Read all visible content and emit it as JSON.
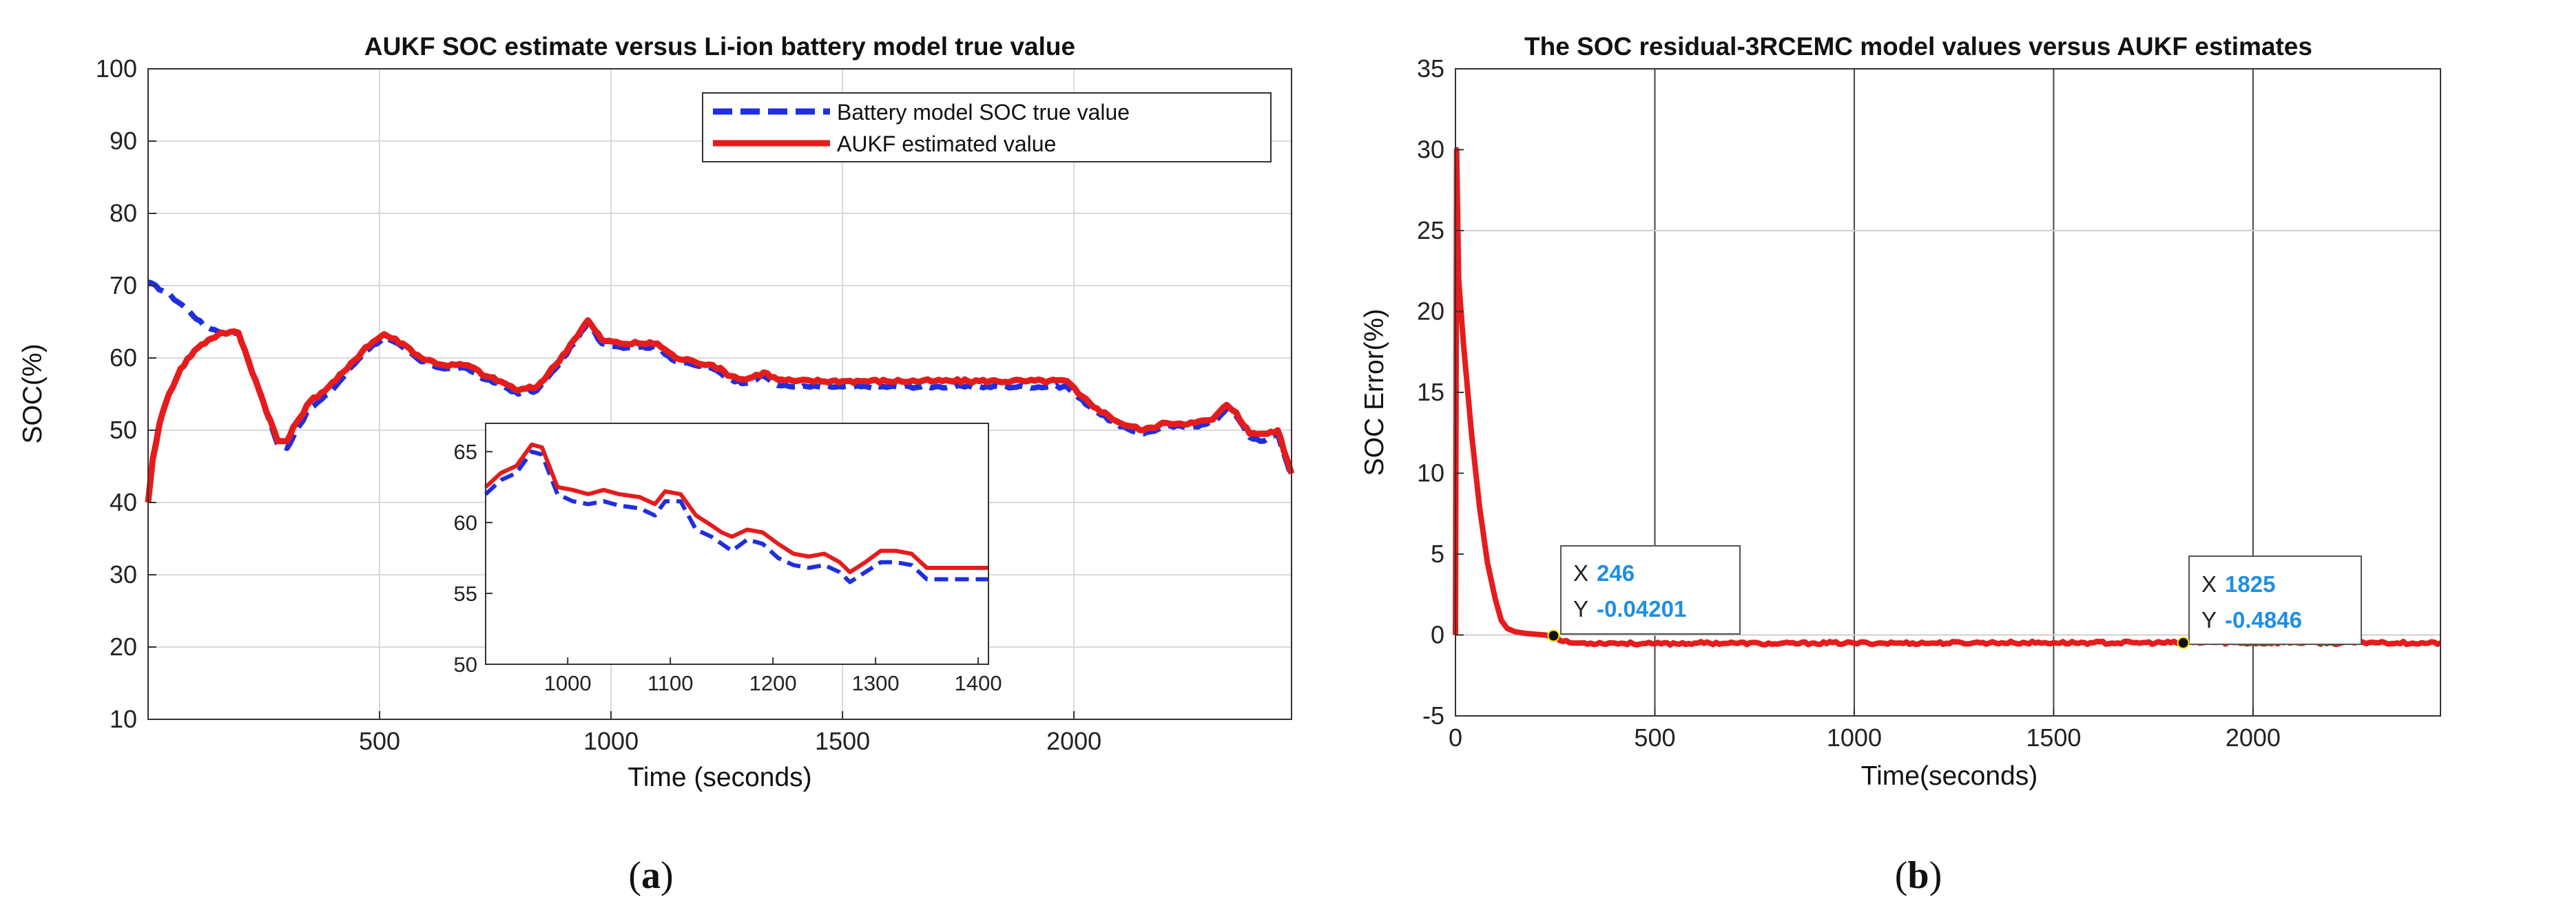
{
  "chart_data": [
    {
      "type": "line",
      "panel": "a",
      "title": "AUKF SOC estimate versus Li-ion battery model true value",
      "xlabel": "Time (seconds)",
      "ylabel": "SOC(%)",
      "xlim": [
        0,
        2470
      ],
      "ylim": [
        10,
        100
      ],
      "xticks": [
        500,
        1000,
        1500,
        2000
      ],
      "yticks": [
        10,
        20,
        30,
        40,
        50,
        60,
        70,
        80,
        90,
        100
      ],
      "grid": true,
      "legend_position": "top-right",
      "series": [
        {
          "name": "Battery model SOC true value",
          "color": "#1f2ee0",
          "style": "dashed",
          "points": [
            [
              0,
              70.5
            ],
            [
              40,
              69
            ],
            [
              80,
              67
            ],
            [
              120,
              64.5
            ],
            [
              160,
              63.5
            ],
            [
              195,
              63.5
            ],
            [
              240,
              55.5
            ],
            [
              280,
              48
            ],
            [
              300,
              47.5
            ],
            [
              320,
              50
            ],
            [
              350,
              53
            ],
            [
              390,
              55
            ],
            [
              430,
              58
            ],
            [
              470,
              61
            ],
            [
              510,
              62.8
            ],
            [
              550,
              61.5
            ],
            [
              590,
              59.5
            ],
            [
              640,
              58.5
            ],
            [
              690,
              58.5
            ],
            [
              730,
              57
            ],
            [
              770,
              56
            ],
            [
              800,
              55
            ],
            [
              840,
              55.5
            ],
            [
              880,
              58.5
            ],
            [
              920,
              62
            ],
            [
              950,
              64.8
            ],
            [
              980,
              62
            ],
            [
              1020,
              61.5
            ],
            [
              1060,
              61.5
            ],
            [
              1100,
              61.5
            ],
            [
              1140,
              59.5
            ],
            [
              1180,
              59
            ],
            [
              1220,
              58.5
            ],
            [
              1260,
              57
            ],
            [
              1290,
              56.5
            ],
            [
              1330,
              57.5
            ],
            [
              1360,
              56.2
            ],
            [
              1400,
              56
            ],
            [
              1500,
              56
            ],
            [
              1700,
              56
            ],
            [
              1900,
              56
            ],
            [
              1985,
              56
            ],
            [
              2010,
              54.5
            ],
            [
              2050,
              52.5
            ],
            [
              2100,
              50.5
            ],
            [
              2150,
              49.5
            ],
            [
              2200,
              50.5
            ],
            [
              2260,
              50.5
            ],
            [
              2300,
              51
            ],
            [
              2330,
              53
            ],
            [
              2350,
              52
            ],
            [
              2380,
              49
            ],
            [
              2410,
              48.5
            ],
            [
              2440,
              49.5
            ],
            [
              2460,
              45.5
            ],
            [
              2470,
              43.5
            ]
          ]
        },
        {
          "name": "AUKF estimated value",
          "color": "#e51c1c",
          "style": "solid",
          "points": [
            [
              0,
              40
            ],
            [
              10,
              46
            ],
            [
              25,
              51
            ],
            [
              45,
              55
            ],
            [
              70,
              58.5
            ],
            [
              100,
              61
            ],
            [
              130,
              62.5
            ],
            [
              160,
              63.5
            ],
            [
              195,
              63.5
            ],
            [
              240,
              55.5
            ],
            [
              280,
              48.5
            ],
            [
              300,
              48.5
            ],
            [
              320,
              51
            ],
            [
              350,
              54
            ],
            [
              390,
              56
            ],
            [
              430,
              58.5
            ],
            [
              470,
              61.5
            ],
            [
              510,
              63.3
            ],
            [
              550,
              62
            ],
            [
              590,
              60
            ],
            [
              640,
              59
            ],
            [
              690,
              59
            ],
            [
              730,
              57.5
            ],
            [
              770,
              56.5
            ],
            [
              800,
              55.5
            ],
            [
              840,
              56
            ],
            [
              880,
              59
            ],
            [
              920,
              62.5
            ],
            [
              950,
              65.2
            ],
            [
              980,
              62.5
            ],
            [
              1020,
              62
            ],
            [
              1060,
              62
            ],
            [
              1100,
              62
            ],
            [
              1140,
              60
            ],
            [
              1180,
              59.5
            ],
            [
              1220,
              59
            ],
            [
              1260,
              57.5
            ],
            [
              1290,
              57
            ],
            [
              1330,
              58
            ],
            [
              1360,
              57
            ],
            [
              1400,
              56.8
            ],
            [
              1500,
              56.8
            ],
            [
              1700,
              56.8
            ],
            [
              1900,
              56.8
            ],
            [
              1985,
              56.8
            ],
            [
              2010,
              55
            ],
            [
              2050,
              53
            ],
            [
              2100,
              51
            ],
            [
              2150,
              50
            ],
            [
              2200,
              51
            ],
            [
              2260,
              51
            ],
            [
              2300,
              51.5
            ],
            [
              2330,
              53.5
            ],
            [
              2350,
              52.5
            ],
            [
              2380,
              49.5
            ],
            [
              2410,
              49.5
            ],
            [
              2440,
              50
            ],
            [
              2460,
              46
            ],
            [
              2470,
              44
            ]
          ]
        }
      ],
      "inset": {
        "xlim": [
          920,
          1410
        ],
        "ylim": [
          50,
          67
        ],
        "xticks": [
          1000,
          1100,
          1200,
          1300,
          1400
        ],
        "yticks": [
          50,
          55,
          60,
          65
        ],
        "series": [
          {
            "name": "Battery model SOC true value",
            "color": "#1f2ee0",
            "style": "dashed",
            "points": [
              [
                920,
                62
              ],
              [
                935,
                63
              ],
              [
                950,
                63.5
              ],
              [
                965,
                65
              ],
              [
                975,
                64.8
              ],
              [
                990,
                62
              ],
              [
                1005,
                61.5
              ],
              [
                1020,
                61.3
              ],
              [
                1035,
                61.5
              ],
              [
                1050,
                61.2
              ],
              [
                1070,
                61
              ],
              [
                1085,
                60.5
              ],
              [
                1095,
                61.5
              ],
              [
                1110,
                61.5
              ],
              [
                1125,
                59.5
              ],
              [
                1140,
                59
              ],
              [
                1150,
                58.5
              ],
              [
                1160,
                58
              ],
              [
                1175,
                58.8
              ],
              [
                1190,
                58.5
              ],
              [
                1205,
                57.5
              ],
              [
                1220,
                57
              ],
              [
                1235,
                56.8
              ],
              [
                1250,
                57
              ],
              [
                1265,
                56.5
              ],
              [
                1275,
                55.8
              ],
              [
                1290,
                56.5
              ],
              [
                1305,
                57.2
              ],
              [
                1320,
                57.2
              ],
              [
                1335,
                57
              ],
              [
                1350,
                56
              ],
              [
                1370,
                56
              ],
              [
                1410,
                56
              ]
            ]
          },
          {
            "name": "AUKF estimated value",
            "color": "#e51c1c",
            "style": "solid",
            "points": [
              [
                920,
                62.5
              ],
              [
                935,
                63.5
              ],
              [
                950,
                64
              ],
              [
                965,
                65.5
              ],
              [
                975,
                65.3
              ],
              [
                990,
                62.5
              ],
              [
                1005,
                62.3
              ],
              [
                1020,
                62
              ],
              [
                1035,
                62.3
              ],
              [
                1050,
                62
              ],
              [
                1070,
                61.8
              ],
              [
                1085,
                61.3
              ],
              [
                1095,
                62.2
              ],
              [
                1110,
                62
              ],
              [
                1125,
                60.5
              ],
              [
                1140,
                59.8
              ],
              [
                1150,
                59.3
              ],
              [
                1160,
                59
              ],
              [
                1175,
                59.5
              ],
              [
                1190,
                59.3
              ],
              [
                1205,
                58.5
              ],
              [
                1220,
                57.8
              ],
              [
                1235,
                57.6
              ],
              [
                1250,
                57.8
              ],
              [
                1265,
                57.2
              ],
              [
                1275,
                56.5
              ],
              [
                1290,
                57.2
              ],
              [
                1305,
                58
              ],
              [
                1320,
                58
              ],
              [
                1335,
                57.8
              ],
              [
                1350,
                56.8
              ],
              [
                1370,
                56.8
              ],
              [
                1410,
                56.8
              ]
            ]
          }
        ]
      }
    },
    {
      "type": "line",
      "panel": "b",
      "title": "The SOC residual-3RCEMC model values versus AUKF estimates",
      "xlabel": "Time(seconds)",
      "ylabel": "SOC Error(%)",
      "xlim": [
        0,
        2470
      ],
      "ylim": [
        -5,
        35
      ],
      "xticks": [
        0,
        500,
        1000,
        1500,
        2000
      ],
      "yticks": [
        -5,
        0,
        5,
        10,
        15,
        20,
        25,
        30,
        35
      ],
      "grid": true,
      "series": [
        {
          "name": "SOC residual",
          "color": "#e51c1c",
          "style": "solid",
          "points": [
            [
              0,
              0
            ],
            [
              3,
              30
            ],
            [
              8,
              22
            ],
            [
              20,
              18
            ],
            [
              40,
              12.5
            ],
            [
              60,
              8
            ],
            [
              80,
              4.5
            ],
            [
              100,
              2.2
            ],
            [
              115,
              0.9
            ],
            [
              130,
              0.4
            ],
            [
              150,
              0.2
            ],
            [
              175,
              0.1
            ],
            [
              200,
              0.05
            ],
            [
              225,
              0
            ],
            [
              246,
              -0.042
            ],
            [
              270,
              -0.4
            ],
            [
              300,
              -0.5
            ],
            [
              400,
              -0.5
            ],
            [
              500,
              -0.55
            ],
            [
              600,
              -0.5
            ],
            [
              700,
              -0.5
            ],
            [
              800,
              -0.55
            ],
            [
              900,
              -0.5
            ],
            [
              1000,
              -0.5
            ],
            [
              1100,
              -0.5
            ],
            [
              1200,
              -0.5
            ],
            [
              1300,
              -0.48
            ],
            [
              1400,
              -0.48
            ],
            [
              1500,
              -0.48
            ],
            [
              1600,
              -0.48
            ],
            [
              1700,
              -0.48
            ],
            [
              1825,
              -0.4846
            ],
            [
              1900,
              -0.45
            ],
            [
              2000,
              -0.5
            ],
            [
              2100,
              -0.45
            ],
            [
              2200,
              -0.5
            ],
            [
              2300,
              -0.45
            ],
            [
              2400,
              -0.5
            ],
            [
              2470,
              -0.5
            ]
          ]
        }
      ],
      "datatips": [
        {
          "x_label": "X",
          "x_value": "246",
          "y_label": "Y",
          "y_value": "-0.04201",
          "x": 246,
          "y": -0.04201
        },
        {
          "x_label": "X",
          "x_value": "1825",
          "y_label": "Y",
          "y_value": "-0.4846",
          "x": 1825,
          "y": -0.4846
        }
      ]
    }
  ],
  "panel_labels": {
    "a": {
      "open": "(",
      "letter": "a",
      "close": ")"
    },
    "b": {
      "open": "(",
      "letter": "b",
      "close": ")"
    }
  }
}
